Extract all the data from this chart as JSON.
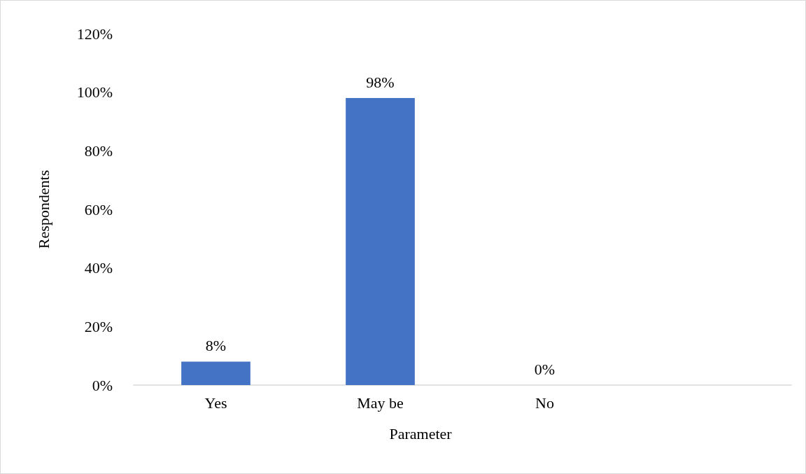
{
  "chart_data": {
    "type": "bar",
    "xlabel": "Parameter",
    "ylabel": "Respondents",
    "categories": [
      "Yes",
      "May be",
      "No",
      null
    ],
    "values": [
      8,
      98,
      0,
      null
    ],
    "value_labels": [
      "8%",
      "98%",
      "0%",
      null
    ],
    "color": "#4472c4",
    "ylim": [
      0,
      120
    ],
    "yticks": [
      {
        "value": 0,
        "label": "0%"
      },
      {
        "value": 20,
        "label": "20%"
      },
      {
        "value": 40,
        "label": "40%"
      },
      {
        "value": 60,
        "label": "60%"
      },
      {
        "value": 80,
        "label": "80%"
      },
      {
        "value": 100,
        "label": "100%"
      },
      {
        "value": 120,
        "label": "120%"
      }
    ],
    "grid": false
  }
}
